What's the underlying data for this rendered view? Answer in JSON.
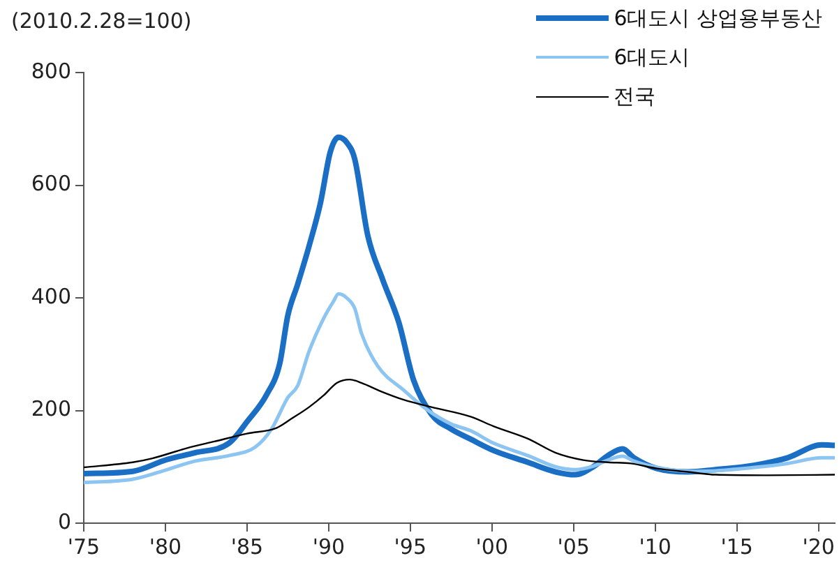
{
  "chart_data": {
    "type": "line",
    "ylabel": "(2010.2.28=100)",
    "legend": "top right",
    "grid": false,
    "marker": "none",
    "line_style": "solid",
    "xlim": [
      1975,
      2021
    ],
    "xticks": [
      {
        "value": 1975,
        "label": "'75"
      },
      {
        "value": 1980,
        "label": "'80"
      },
      {
        "value": 1985,
        "label": "'85"
      },
      {
        "value": 1990,
        "label": "'90"
      },
      {
        "value": 1995,
        "label": "'95"
      },
      {
        "value": 2000,
        "label": "'00"
      },
      {
        "value": 2005,
        "label": "'05"
      },
      {
        "value": 2010,
        "label": "'10"
      },
      {
        "value": 2015,
        "label": "'15"
      },
      {
        "value": 2020,
        "label": "'20"
      }
    ],
    "ylim": [
      0,
      800
    ],
    "yticks": [
      0,
      200,
      400,
      600,
      800
    ],
    "series": [
      {
        "name": "6대도시 상업용부동산",
        "color": "#1a6fc4",
        "x": [
          1975,
          1978,
          1980.1,
          1981.8,
          1983.9,
          1985,
          1986.2,
          1987,
          1987.5,
          1988.1,
          1988.8,
          1989.5,
          1990.1,
          1990.6,
          1991.1,
          1991.6,
          1992.4,
          1993.3,
          1994.3,
          1995.2,
          1996.3,
          1997.5,
          1998.7,
          2000.1,
          2002.2,
          2003.9,
          2005.1,
          2006.2,
          2007.1,
          2008,
          2008.7,
          2010.1,
          2012,
          2013.7,
          2016.1,
          2018.1,
          2020.2,
          2021
        ],
        "values": [
          88,
          92,
          113,
          125,
          142,
          180,
          228,
          283,
          369,
          424,
          492,
          569,
          659,
          685,
          676,
          646,
          510,
          433,
          356,
          254,
          193,
          167,
          149,
          129,
          108,
          91,
          86,
          100,
          120,
          132,
          116,
          97,
          91,
          95,
          103,
          116,
          139,
          138
        ]
      },
      {
        "name": "6대도시",
        "color": "#8cc4f2",
        "x": [
          1975,
          1978,
          1980.1,
          1981.8,
          1983.9,
          1985.5,
          1986.5,
          1987.5,
          1988.1,
          1988.8,
          1989.7,
          1990.3,
          1990.6,
          1991.1,
          1991.6,
          1992,
          1993,
          1994.6,
          1996,
          1997.5,
          1998.7,
          2000.1,
          2002.2,
          2003.9,
          2005.1,
          2006.2,
          2007.1,
          2008,
          2008.7,
          2010.1,
          2012,
          2013.7,
          2016.1,
          2018.1,
          2020.2,
          2021
        ],
        "values": [
          72,
          78,
          95,
          110,
          120,
          135,
          167,
          223,
          244,
          305,
          364,
          394,
          407,
          400,
          381,
          338,
          279,
          236,
          202,
          176,
          164,
          142,
          120,
          100,
          95,
          101,
          112,
          119,
          110,
          99,
          92,
          93,
          99,
          106,
          116,
          116
        ]
      },
      {
        "name": "전국",
        "color": "#000000",
        "x": [
          1975,
          1978,
          1979.2,
          1981.3,
          1983,
          1985,
          1986.8,
          1987.7,
          1988.8,
          1989.7,
          1990.5,
          1991.3,
          1992,
          1993.2,
          1994.6,
          1996.3,
          1998.7,
          2000.1,
          2002.2,
          2003.9,
          2005.6,
          2007.1,
          2008.5,
          2010.1,
          2012,
          2013.7,
          2016.7,
          2021
        ],
        "values": [
          99,
          108,
          115,
          133,
          145,
          159,
          169,
          185,
          206,
          227,
          249,
          255,
          249,
          234,
          219,
          206,
          189,
          172,
          150,
          125,
          112,
          108,
          106,
          97,
          91,
          86,
          85,
          86
        ]
      }
    ]
  }
}
